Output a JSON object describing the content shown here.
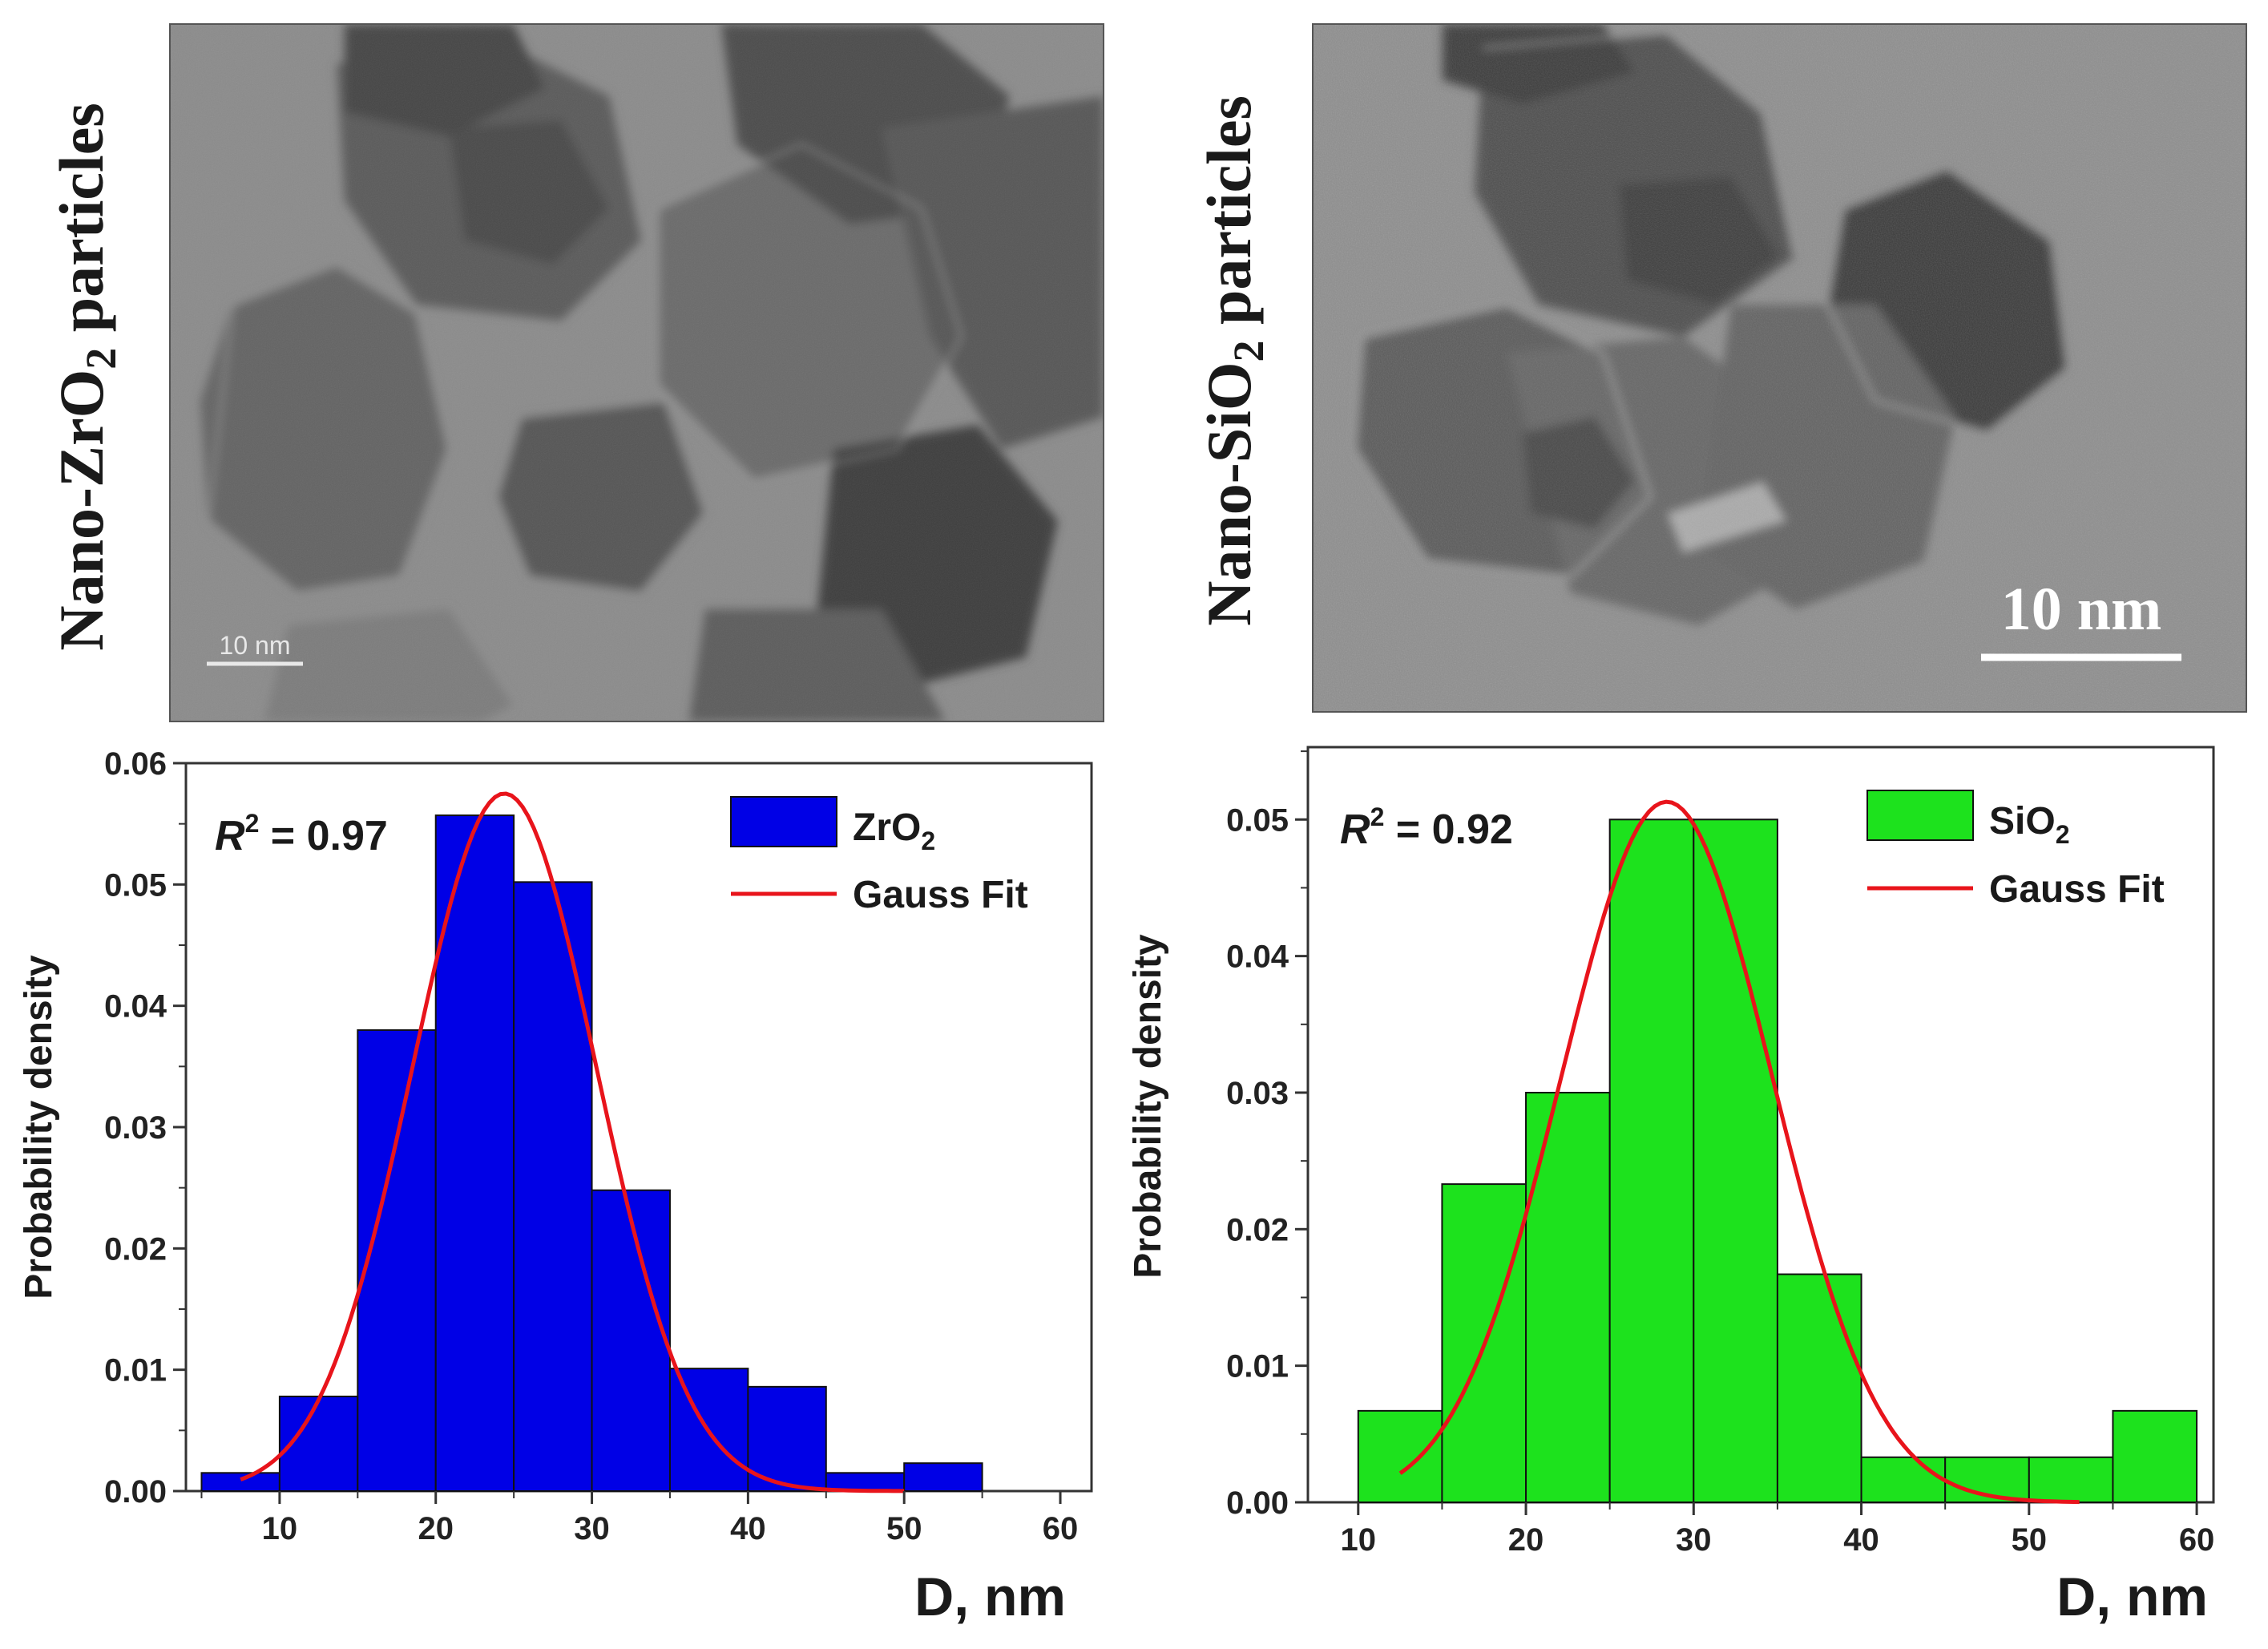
{
  "panels": {
    "top_left": {
      "label_prefix": "Nano-ZrO",
      "label_sub": "2",
      "label_suffix": " particles",
      "scale_bar": "10 nm"
    },
    "top_right": {
      "label_prefix": "Nano-SiO",
      "label_sub": "2",
      "label_suffix": " particles",
      "scale_bar": "10 nm"
    }
  },
  "chart_data": [
    {
      "type": "bar",
      "subtype": "histogram",
      "bin_edges": [
        5,
        10,
        15,
        20,
        25,
        30,
        35,
        40,
        45,
        50,
        55
      ],
      "values": [
        0.0015,
        0.0078,
        0.038,
        0.0557,
        0.0502,
        0.0248,
        0.0101,
        0.0086,
        0.0015,
        0.0023
      ],
      "xlim": [
        4,
        62
      ],
      "ylim": [
        0,
        0.06
      ],
      "xticks": [
        "10",
        "20",
        "30",
        "40",
        "50",
        "60"
      ],
      "yticks": [
        "0.00",
        "0.01",
        "0.02",
        "0.03",
        "0.04",
        "0.05",
        "0.06"
      ],
      "xlabel": "D, nm",
      "ylabel": "Probability density",
      "r2_sym": "R",
      "r2_sup": "2",
      "r2_val": " = 0.97",
      "legend_bar_prefix": "ZrO",
      "legend_bar_sub": "2",
      "legend_fit": "Gauss Fit",
      "bar_color": "#0000e6",
      "fit_color": "#e8141b",
      "fit": {
        "amplitude": 0.0575,
        "mean": 24.4,
        "sigma": 5.9,
        "x_range": [
          7.5,
          50
        ]
      }
    },
    {
      "type": "bar",
      "subtype": "histogram",
      "bin_edges": [
        10,
        15,
        20,
        25,
        30,
        35,
        40,
        45,
        50,
        55,
        60
      ],
      "values": [
        0.0067,
        0.0233,
        0.03,
        0.05,
        0.05,
        0.0167,
        0.0033,
        0.0033,
        0.0033,
        0.0067
      ],
      "xlim": [
        7,
        61
      ],
      "ylim": [
        0,
        0.0553
      ],
      "xticks": [
        "10",
        "20",
        "30",
        "40",
        "50",
        "60"
      ],
      "yticks": [
        "0.00",
        "0.01",
        "0.02",
        "0.03",
        "0.04",
        "0.05"
      ],
      "xlabel": "D, nm",
      "ylabel": "Probability density",
      "r2_sym": "R",
      "r2_sup": "2",
      "r2_val": " = 0.92",
      "legend_bar_prefix": "SiO",
      "legend_bar_sub": "2",
      "legend_fit": "Gauss Fit",
      "bar_color": "#1de21d",
      "fit_color": "#e8141b",
      "fit": {
        "amplitude": 0.0513,
        "mean": 28.4,
        "sigma": 6.3,
        "x_range": [
          12.5,
          53
        ]
      }
    }
  ]
}
